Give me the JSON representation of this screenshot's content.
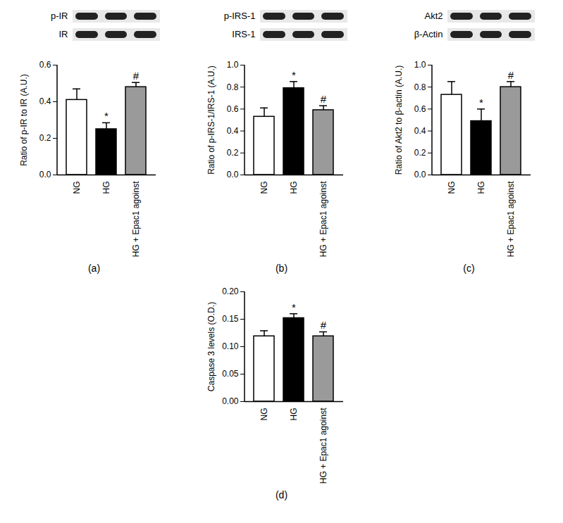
{
  "chart_data": [
    {
      "type": "bar",
      "title": "(a)",
      "blot_labels": [
        "p-IR",
        "IR"
      ],
      "categories": [
        "NG",
        "HG",
        "HG + Epac1 agoinst"
      ],
      "values": [
        0.41,
        0.25,
        0.48
      ],
      "errors": [
        0.06,
        0.035,
        0.025
      ],
      "annotations": [
        null,
        "*",
        "#"
      ],
      "colors": [
        "#ffffff",
        "#000000",
        "#9a9a9a"
      ],
      "y_label": "Ratio of p-IR to IR (A.U.)",
      "ylim": [
        0,
        0.6
      ],
      "yticks": [
        {
          "value": 0,
          "label": "0.0"
        },
        0.2,
        0.4,
        0.6
      ]
    },
    {
      "type": "bar",
      "title": "(b)",
      "blot_labels": [
        "p-IRS-1",
        "IRS-1"
      ],
      "categories": [
        "NG",
        "HG",
        "HG + Epac1 agoinst"
      ],
      "values": [
        0.53,
        0.79,
        0.59
      ],
      "errors": [
        0.08,
        0.06,
        0.04
      ],
      "annotations": [
        null,
        "*",
        "#"
      ],
      "colors": [
        "#ffffff",
        "#000000",
        "#9a9a9a"
      ],
      "y_label": "Ratio of p-IRS-1/IRS-1 (A.U.)",
      "ylim": [
        0,
        1.0
      ],
      "yticks": [
        {
          "value": 0,
          "label": "0.0"
        },
        0.2,
        0.4,
        0.6,
        0.8,
        {
          "value": 1.0,
          "label": "1.0"
        }
      ]
    },
    {
      "type": "bar",
      "title": "(c)",
      "blot_labels": [
        "Akt2",
        "β-Actin"
      ],
      "categories": [
        "NG",
        "HG",
        "HG + Epac1 agoinst"
      ],
      "values": [
        0.73,
        0.49,
        0.8
      ],
      "errors": [
        0.12,
        0.11,
        0.05
      ],
      "annotations": [
        null,
        "*",
        "#"
      ],
      "colors": [
        "#ffffff",
        "#000000",
        "#9a9a9a"
      ],
      "y_label": "Ratio of Akt2 to β-actin (A.U.)",
      "ylim": [
        0,
        1.0
      ],
      "yticks": [
        {
          "value": 0,
          "label": "0.0"
        },
        0.2,
        0.4,
        0.6,
        0.8,
        {
          "value": 1.0,
          "label": "1.0"
        }
      ]
    },
    {
      "type": "bar",
      "title": "(d)",
      "categories": [
        "NG",
        "HG",
        "HG + Epac1 agoinst"
      ],
      "values": [
        0.119,
        0.152,
        0.119
      ],
      "errors": [
        0.01,
        0.008,
        0.008
      ],
      "annotations": [
        null,
        "*",
        "#"
      ],
      "colors": [
        "#ffffff",
        "#000000",
        "#9a9a9a"
      ],
      "y_label": "Caspase 3 levels (O.D.)",
      "ylim": [
        0,
        0.2
      ],
      "yticks": [
        {
          "value": 0,
          "label": "0.00"
        },
        0.05,
        {
          "value": 0.1,
          "label": "0.10"
        },
        0.15,
        {
          "value": 0.2,
          "label": "0.20"
        }
      ]
    }
  ]
}
